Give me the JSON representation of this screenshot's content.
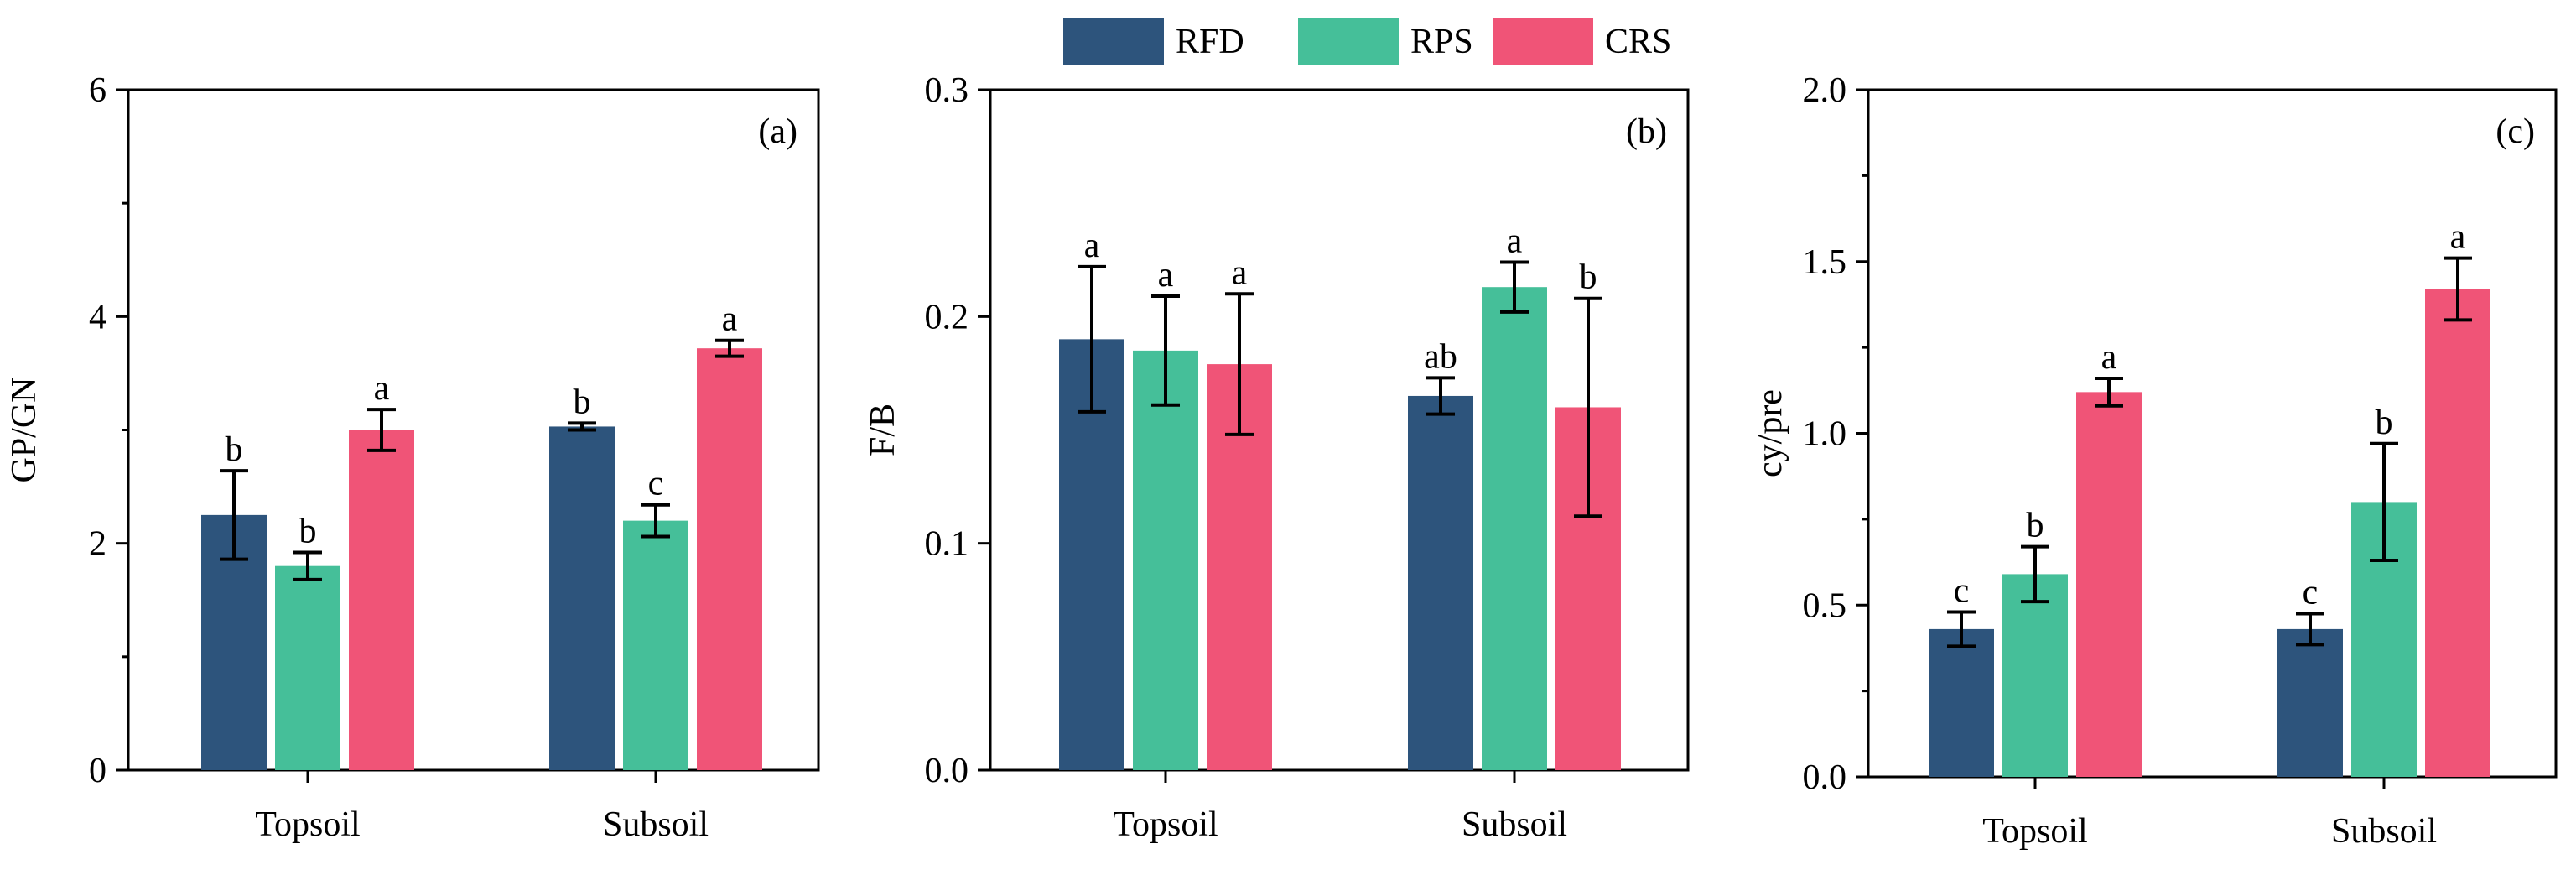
{
  "legend": {
    "items": [
      {
        "name": "RFD",
        "color": "#2d547c"
      },
      {
        "name": "RPS",
        "color": "#45bf99"
      },
      {
        "name": "CRS",
        "color": "#f05477"
      }
    ]
  },
  "chart_data": [
    {
      "type": "bar",
      "panel_label": "(a)",
      "ylabel": "GP/GN",
      "xlabel": "",
      "categories": [
        "Topsoil",
        "Subsoil"
      ],
      "ylim": [
        0,
        6
      ],
      "yticks": [
        0,
        2,
        4,
        6
      ],
      "ytick_labels": [
        "0",
        "2",
        "4",
        "6"
      ],
      "series": [
        {
          "name": "RFD",
          "values": [
            2.25,
            3.03
          ],
          "errors": [
            0.39,
            0.03
          ],
          "letters": [
            "b",
            "b"
          ]
        },
        {
          "name": "RPS",
          "values": [
            1.8,
            2.2
          ],
          "errors": [
            0.12,
            0.14
          ],
          "letters": [
            "b",
            "c"
          ]
        },
        {
          "name": "CRS",
          "values": [
            3.0,
            3.72
          ],
          "errors": [
            0.18,
            0.07
          ],
          "letters": [
            "a",
            "a"
          ]
        }
      ]
    },
    {
      "type": "bar",
      "panel_label": "(b)",
      "ylabel": "F/B",
      "xlabel": "",
      "categories": [
        "Topsoil",
        "Subsoil"
      ],
      "ylim": [
        0,
        0.3
      ],
      "yticks": [
        0,
        0.1,
        0.2,
        0.3
      ],
      "ytick_labels": [
        "0.0",
        "0.1",
        "0.2",
        "0.3"
      ],
      "series": [
        {
          "name": "RFD",
          "values": [
            0.19,
            0.165
          ],
          "errors": [
            0.032,
            0.008
          ],
          "letters": [
            "a",
            "ab"
          ]
        },
        {
          "name": "RPS",
          "values": [
            0.185,
            0.213
          ],
          "errors": [
            0.024,
            0.011
          ],
          "letters": [
            "a",
            "a"
          ]
        },
        {
          "name": "CRS",
          "values": [
            0.179,
            0.16
          ],
          "errors": [
            0.031,
            0.048
          ],
          "letters": [
            "a",
            "b"
          ]
        }
      ]
    },
    {
      "type": "bar",
      "panel_label": "(c)",
      "ylabel": "cy/pre",
      "xlabel": "",
      "categories": [
        "Topsoil",
        "Subsoil"
      ],
      "ylim": [
        0,
        2.0
      ],
      "yticks": [
        0,
        0.5,
        1.0,
        1.5,
        2.0
      ],
      "ytick_labels": [
        "0.0",
        "0.5",
        "1.0",
        "1.5",
        "2.0"
      ],
      "series": [
        {
          "name": "RFD",
          "values": [
            0.43,
            0.43
          ],
          "errors": [
            0.05,
            0.045
          ],
          "letters": [
            "c",
            "c"
          ]
        },
        {
          "name": "RPS",
          "values": [
            0.59,
            0.8
          ],
          "errors": [
            0.08,
            0.17
          ],
          "letters": [
            "b",
            "b"
          ]
        },
        {
          "name": "CRS",
          "values": [
            1.12,
            1.42
          ],
          "errors": [
            0.04,
            0.09
          ],
          "letters": [
            "a",
            "a"
          ]
        }
      ]
    }
  ]
}
